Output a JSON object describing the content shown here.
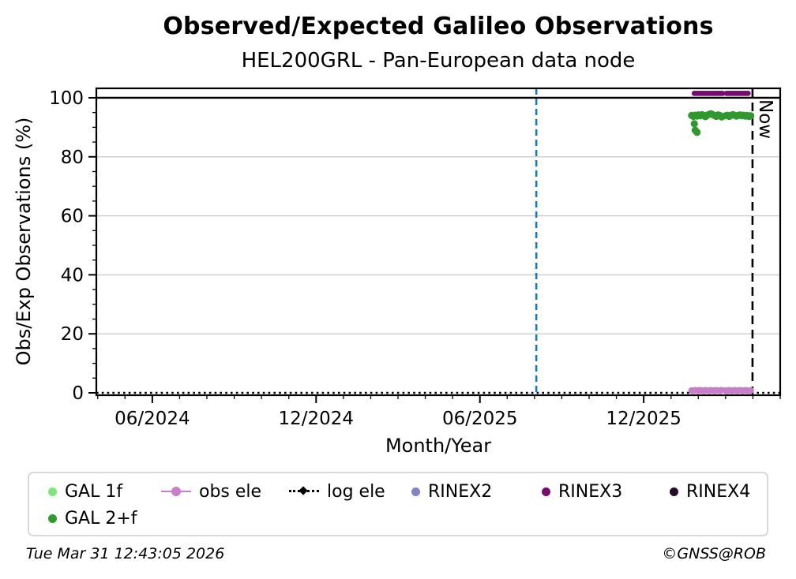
{
  "figure": {
    "title": "Observed/Expected Galileo Observations",
    "subtitle": "HEL200GRL - Pan-European data node",
    "footer_left": "Tue Mar 31 12:43:05 2026",
    "footer_right": "©GNSS@ROB"
  },
  "chart_data": {
    "type": "scatter",
    "title": "Observed/Expected Galileo Observations",
    "subtitle": "HEL200GRL - Pan-European data node",
    "xlabel": "Month/Year",
    "ylabel": "Obs/Exp Observations (%)",
    "grid": true,
    "x_axis": {
      "xlim_months": [
        2.95,
        28.0
      ],
      "months_origin": "2024-01",
      "major_ticks": [
        {
          "month": "2024-06",
          "label": "06/2024"
        },
        {
          "month": "2024-12",
          "label": "12/2024"
        },
        {
          "month": "2025-06",
          "label": "06/2025"
        },
        {
          "month": "2025-12",
          "label": "12/2025"
        }
      ],
      "minor_tick_interval_months": 1
    },
    "y_axis": {
      "ylim": [
        -0.8,
        103.2
      ],
      "major_ticks": [
        0,
        20,
        40,
        60,
        80,
        100
      ],
      "minor_step": 5,
      "gridline_color": "#cbcbcb"
    },
    "reference_lines": [
      {
        "name": "hundred-percent-line",
        "value": 100,
        "color": "#000000",
        "style": "solid",
        "width": 2.4
      },
      {
        "name": "log ele",
        "value": 0,
        "color": "#000000",
        "style": "dotted",
        "width": 2.6
      }
    ],
    "vertical_lines": [
      {
        "name": "data-start-line",
        "date": "2025-08-03",
        "color": "#1f77b4",
        "style": "dashed",
        "width": 2.6,
        "label": ""
      },
      {
        "name": "now-line",
        "date": "2026-03-31",
        "color": "#000000",
        "style": "dashed",
        "width": 2.6,
        "label": "Now"
      }
    ],
    "series": [
      {
        "name": "GAL 1f",
        "color": "#7ce57c",
        "marker": "dot",
        "marker_radius": 4.6,
        "points": []
      },
      {
        "name": "GAL 2+f",
        "color": "#30982f",
        "marker": "dot",
        "marker_radius": 4.6,
        "points": [
          [
            "2026-01-24",
            94.0
          ],
          [
            "2026-01-26",
            93.7
          ],
          [
            "2026-01-28",
            94.1
          ],
          [
            "2026-01-30",
            93.8
          ],
          [
            "2026-02-01",
            94.2
          ],
          [
            "2026-02-03",
            93.9
          ],
          [
            "2026-02-05",
            94.3
          ],
          [
            "2026-02-07",
            94.0
          ],
          [
            "2026-02-09",
            93.6
          ],
          [
            "2026-02-11",
            94.1
          ],
          [
            "2026-02-13",
            94.4
          ],
          [
            "2026-02-15",
            94.6
          ],
          [
            "2026-02-17",
            94.3
          ],
          [
            "2026-02-19",
            94.0
          ],
          [
            "2026-02-21",
            93.7
          ],
          [
            "2026-02-23",
            94.2
          ],
          [
            "2026-02-25",
            94.0
          ],
          [
            "2026-02-27",
            93.5
          ],
          [
            "2026-03-01",
            93.9
          ],
          [
            "2026-03-03",
            94.1
          ],
          [
            "2026-03-05",
            93.7
          ],
          [
            "2026-03-07",
            94.0
          ],
          [
            "2026-03-09",
            94.3
          ],
          [
            "2026-03-11",
            94.1
          ],
          [
            "2026-03-13",
            93.8
          ],
          [
            "2026-03-15",
            94.0
          ],
          [
            "2026-03-17",
            94.2
          ],
          [
            "2026-03-19",
            93.9
          ],
          [
            "2026-03-21",
            94.1
          ],
          [
            "2026-03-23",
            93.8
          ],
          [
            "2026-03-25",
            94.0
          ],
          [
            "2026-03-27",
            93.7
          ],
          [
            "2026-03-29",
            93.9
          ],
          [
            "2026-01-27",
            91.2
          ],
          [
            "2026-01-28",
            89.0
          ],
          [
            "2026-01-30",
            88.3
          ]
        ]
      },
      {
        "name": "obs ele",
        "color": "#c87ec8",
        "marker": "line-dot",
        "marker_radius": 4.2,
        "points": [
          [
            "2026-01-24",
            0.8
          ],
          [
            "2026-01-26",
            0.7
          ],
          [
            "2026-01-28",
            0.9
          ],
          [
            "2026-01-30",
            0.8
          ],
          [
            "2026-02-01",
            0.7
          ],
          [
            "2026-02-03",
            0.9
          ],
          [
            "2026-02-05",
            0.8
          ],
          [
            "2026-02-07",
            0.7
          ],
          [
            "2026-02-09",
            0.9
          ],
          [
            "2026-02-11",
            0.8
          ],
          [
            "2026-02-13",
            0.7
          ],
          [
            "2026-02-15",
            0.9
          ],
          [
            "2026-02-17",
            0.8
          ],
          [
            "2026-02-19",
            0.7
          ],
          [
            "2026-02-21",
            0.9
          ],
          [
            "2026-02-23",
            0.8
          ],
          [
            "2026-02-25",
            0.7
          ],
          [
            "2026-02-27",
            0.9
          ],
          [
            "2026-03-01",
            0.8
          ],
          [
            "2026-03-03",
            0.7
          ],
          [
            "2026-03-05",
            0.9
          ],
          [
            "2026-03-07",
            0.8
          ],
          [
            "2026-03-09",
            0.7
          ],
          [
            "2026-03-11",
            0.9
          ],
          [
            "2026-03-13",
            0.8
          ],
          [
            "2026-03-15",
            0.7
          ],
          [
            "2026-03-17",
            0.9
          ],
          [
            "2026-03-19",
            0.8
          ],
          [
            "2026-03-21",
            0.7
          ],
          [
            "2026-03-23",
            0.9
          ],
          [
            "2026-03-25",
            0.8
          ],
          [
            "2026-03-27",
            0.7
          ],
          [
            "2026-03-29",
            0.8
          ]
        ]
      },
      {
        "name": "log ele",
        "color": "#000000",
        "marker": "dotted-line",
        "marker_radius": 0,
        "points": []
      },
      {
        "name": "RINEX2",
        "color": "#8181c4",
        "marker": "dot",
        "marker_radius": 3.4,
        "points": []
      },
      {
        "name": "RINEX3",
        "color": "#760d6e",
        "marker": "dot",
        "marker_radius": 3.4,
        "points": [
          [
            "2026-01-27",
            101.5
          ],
          [
            "2026-01-29",
            101.5
          ],
          [
            "2026-01-31",
            101.5
          ],
          [
            "2026-02-02",
            101.5
          ],
          [
            "2026-02-04",
            101.5
          ],
          [
            "2026-02-06",
            101.5
          ],
          [
            "2026-02-08",
            101.5
          ],
          [
            "2026-02-10",
            101.5
          ],
          [
            "2026-02-12",
            101.5
          ],
          [
            "2026-02-14",
            101.5
          ],
          [
            "2026-02-16",
            101.5
          ],
          [
            "2026-02-18",
            101.5
          ],
          [
            "2026-02-20",
            101.5
          ],
          [
            "2026-02-22",
            101.5
          ],
          [
            "2026-02-24",
            101.5
          ],
          [
            "2026-02-26",
            101.5
          ],
          [
            "2026-02-28",
            101.5
          ],
          [
            "2026-03-02",
            101.5
          ],
          [
            "2026-03-04",
            101.5
          ],
          [
            "2026-03-06",
            101.5
          ],
          [
            "2026-03-08",
            101.5
          ],
          [
            "2026-03-10",
            101.5
          ],
          [
            "2026-03-12",
            101.5
          ],
          [
            "2026-03-14",
            101.5
          ],
          [
            "2026-03-16",
            101.5
          ],
          [
            "2026-03-18",
            101.5
          ],
          [
            "2026-03-20",
            101.5
          ],
          [
            "2026-03-22",
            101.5
          ],
          [
            "2026-03-24",
            101.5
          ],
          [
            "2026-03-26",
            101.5
          ]
        ]
      },
      {
        "name": "RINEX4",
        "color": "#26092a",
        "marker": "dot",
        "marker_radius": 3.4,
        "points": []
      }
    ],
    "legend_position": "bottom",
    "legend_order": [
      "GAL 1f",
      "obs ele",
      "log ele",
      "RINEX2",
      "RINEX3",
      "RINEX4",
      "GAL 2+f"
    ]
  }
}
